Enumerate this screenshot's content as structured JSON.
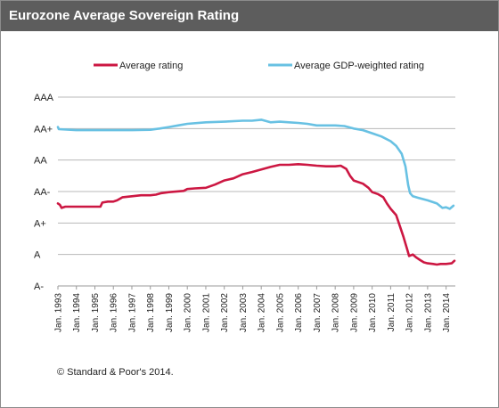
{
  "chart_data": {
    "type": "line",
    "title": "Eurozone Average Sovereign Rating",
    "y_categories": [
      "A-",
      "A",
      "A+",
      "AA-",
      "AA",
      "AA+",
      "AAA"
    ],
    "ylim": [
      0,
      6
    ],
    "x_tick_labels": [
      "Jan. 1993",
      "Jan. 1994",
      "Jan. 1995",
      "Jan. 1996",
      "Jan. 1997",
      "Jan. 1998",
      "Jan. 1999",
      "Jan. 2000",
      "Jan. 2001",
      "Jan. 2002",
      "Jan. 2003",
      "Jan. 2004",
      "Jan. 2005",
      "Jan. 2006",
      "Jan. 2007",
      "Jan. 2008",
      "Jan. 2009",
      "Jan. 2010",
      "Jan. 2011",
      "Jan. 2012",
      "Jan. 2013",
      "Jan. 2014"
    ],
    "xlim": [
      1993.0,
      2014.5
    ],
    "grid": true,
    "legend_position": "top",
    "series": [
      {
        "name": "Average rating",
        "color": "#cc1742",
        "points": [
          [
            1993.0,
            2.62
          ],
          [
            1993.1,
            2.58
          ],
          [
            1993.2,
            2.48
          ],
          [
            1993.4,
            2.52
          ],
          [
            1994.0,
            2.52
          ],
          [
            1995.0,
            2.52
          ],
          [
            1995.3,
            2.52
          ],
          [
            1995.4,
            2.65
          ],
          [
            1995.7,
            2.68
          ],
          [
            1996.0,
            2.68
          ],
          [
            1996.2,
            2.72
          ],
          [
            1996.5,
            2.82
          ],
          [
            1997.0,
            2.85
          ],
          [
            1997.5,
            2.88
          ],
          [
            1998.0,
            2.88
          ],
          [
            1998.3,
            2.9
          ],
          [
            1998.6,
            2.95
          ],
          [
            1999.0,
            2.98
          ],
          [
            1999.8,
            3.02
          ],
          [
            2000.0,
            3.08
          ],
          [
            2000.4,
            3.1
          ],
          [
            2001.0,
            3.12
          ],
          [
            2001.5,
            3.22
          ],
          [
            2002.0,
            3.35
          ],
          [
            2002.5,
            3.42
          ],
          [
            2003.0,
            3.55
          ],
          [
            2003.5,
            3.62
          ],
          [
            2004.0,
            3.7
          ],
          [
            2004.5,
            3.78
          ],
          [
            2005.0,
            3.85
          ],
          [
            2005.5,
            3.85
          ],
          [
            2006.0,
            3.87
          ],
          [
            2006.5,
            3.85
          ],
          [
            2007.0,
            3.82
          ],
          [
            2007.5,
            3.8
          ],
          [
            2008.0,
            3.8
          ],
          [
            2008.3,
            3.82
          ],
          [
            2008.6,
            3.72
          ],
          [
            2008.8,
            3.5
          ],
          [
            2009.0,
            3.35
          ],
          [
            2009.5,
            3.25
          ],
          [
            2009.8,
            3.12
          ],
          [
            2010.0,
            2.98
          ],
          [
            2010.3,
            2.92
          ],
          [
            2010.6,
            2.82
          ],
          [
            2010.8,
            2.62
          ],
          [
            2011.0,
            2.45
          ],
          [
            2011.3,
            2.25
          ],
          [
            2011.5,
            1.9
          ],
          [
            2011.7,
            1.55
          ],
          [
            2011.9,
            1.15
          ],
          [
            2012.0,
            0.95
          ],
          [
            2012.2,
            1.0
          ],
          [
            2012.4,
            0.9
          ],
          [
            2012.6,
            0.82
          ],
          [
            2012.8,
            0.75
          ],
          [
            2013.0,
            0.72
          ],
          [
            2013.3,
            0.7
          ],
          [
            2013.5,
            0.68
          ],
          [
            2013.7,
            0.7
          ],
          [
            2014.0,
            0.7
          ],
          [
            2014.3,
            0.72
          ],
          [
            2014.45,
            0.8
          ]
        ]
      },
      {
        "name": "Average GDP-weighted rating",
        "color": "#68c1e3",
        "points": [
          [
            1993.0,
            5.05
          ],
          [
            1993.05,
            4.98
          ],
          [
            1994.0,
            4.95
          ],
          [
            1995.0,
            4.95
          ],
          [
            1996.0,
            4.95
          ],
          [
            1997.0,
            4.95
          ],
          [
            1998.0,
            4.96
          ],
          [
            1998.5,
            5.0
          ],
          [
            1999.0,
            5.05
          ],
          [
            1999.5,
            5.1
          ],
          [
            2000.0,
            5.15
          ],
          [
            2001.0,
            5.2
          ],
          [
            2002.0,
            5.22
          ],
          [
            2003.0,
            5.25
          ],
          [
            2003.5,
            5.25
          ],
          [
            2004.0,
            5.28
          ],
          [
            2004.5,
            5.2
          ],
          [
            2005.0,
            5.22
          ],
          [
            2005.5,
            5.2
          ],
          [
            2006.0,
            5.18
          ],
          [
            2006.5,
            5.15
          ],
          [
            2007.0,
            5.1
          ],
          [
            2007.5,
            5.1
          ],
          [
            2008.0,
            5.1
          ],
          [
            2008.5,
            5.08
          ],
          [
            2009.0,
            5.0
          ],
          [
            2009.5,
            4.95
          ],
          [
            2010.0,
            4.85
          ],
          [
            2010.5,
            4.75
          ],
          [
            2011.0,
            4.6
          ],
          [
            2011.3,
            4.45
          ],
          [
            2011.6,
            4.2
          ],
          [
            2011.8,
            3.8
          ],
          [
            2011.95,
            3.2
          ],
          [
            2012.05,
            2.95
          ],
          [
            2012.2,
            2.85
          ],
          [
            2012.5,
            2.8
          ],
          [
            2013.0,
            2.72
          ],
          [
            2013.5,
            2.62
          ],
          [
            2013.8,
            2.48
          ],
          [
            2014.0,
            2.5
          ],
          [
            2014.2,
            2.45
          ],
          [
            2014.4,
            2.55
          ]
        ]
      }
    ]
  },
  "footer": {
    "source": "© Standard & Poor's 2014."
  }
}
